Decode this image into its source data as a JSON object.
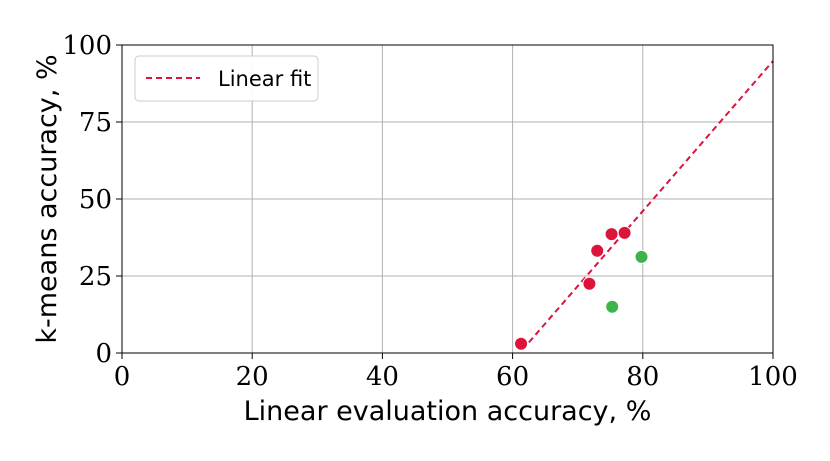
{
  "chart_data": {
    "type": "scatter",
    "title": "",
    "xlabel": "Linear evaluation accuracy, %",
    "ylabel": "k-means accuracy, %",
    "xlim": [
      0,
      100
    ],
    "ylim": [
      0,
      100
    ],
    "xticks": [
      "0",
      "20",
      "40",
      "60",
      "80",
      "100"
    ],
    "yticks": [
      "0",
      "25",
      "50",
      "75",
      "100"
    ],
    "grid": true,
    "legend": {
      "position": "top-left",
      "entries": [
        "Linear fit"
      ]
    },
    "series": [
      {
        "color": "#dc143c",
        "points": [
          [
            61.3,
            3
          ],
          [
            71.8,
            22.5
          ],
          [
            73.0,
            33.2
          ],
          [
            75.2,
            38.6
          ],
          [
            77.2,
            39.0
          ]
        ]
      },
      {
        "color": "#3cb44b",
        "points": [
          [
            75.3,
            15.0
          ],
          [
            79.8,
            31.2
          ]
        ]
      },
      {
        "name": "Linear fit",
        "kind": "dashed-line",
        "color": "#dc143c",
        "points": [
          [
            61.5,
            1.0
          ],
          [
            100,
            94.8
          ]
        ]
      }
    ]
  }
}
